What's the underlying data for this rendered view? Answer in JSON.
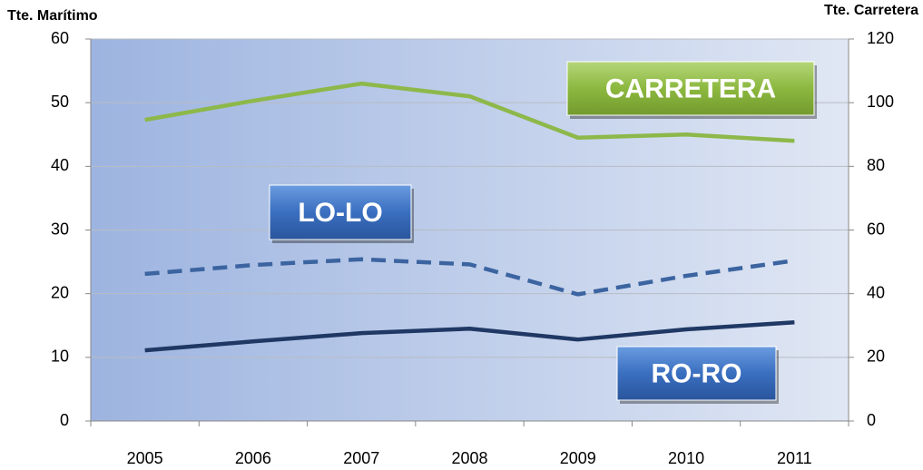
{
  "chart_data": {
    "type": "line",
    "y_label": "Tte. Marítimo",
    "y2_label": "Tte. Carretera",
    "categories": [
      "2005",
      "2006",
      "2007",
      "2008",
      "2009",
      "2010",
      "2011"
    ],
    "ylim": [
      0,
      60
    ],
    "yticks": [
      0,
      10,
      20,
      30,
      40,
      50,
      60
    ],
    "y2lim": [
      0,
      120
    ],
    "y2ticks": [
      0,
      20,
      40,
      60,
      80,
      100,
      120
    ],
    "grid": true,
    "series": [
      {
        "name": "CARRETERA",
        "color": "#8db84a",
        "axis": "y2",
        "dashed": false,
        "values": [
          94.6,
          100.6,
          106,
          102,
          89,
          90,
          88
        ]
      },
      {
        "name": "LO-LO",
        "color": "#3b64a0",
        "axis": "y",
        "dashed": true,
        "values": [
          23.1,
          24.5,
          25.4,
          24.6,
          19.9,
          22.8,
          25.2
        ]
      },
      {
        "name": "RO-RO",
        "color": "#1f3864",
        "axis": "y",
        "dashed": false,
        "values": [
          11.1,
          12.5,
          13.8,
          14.5,
          12.8,
          14.4,
          15.5
        ]
      }
    ]
  }
}
